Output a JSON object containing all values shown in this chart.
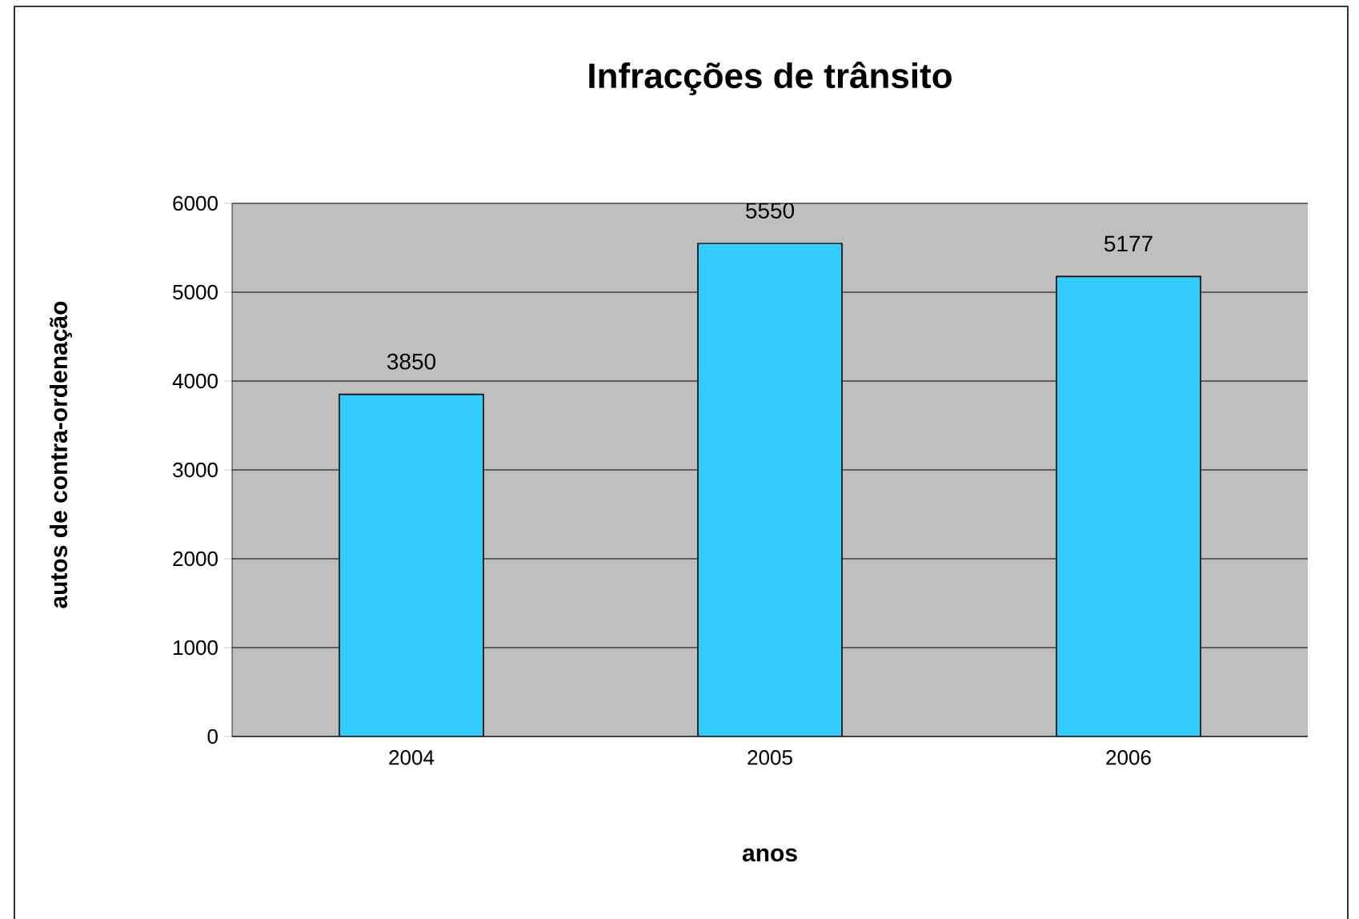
{
  "chart_data": {
    "type": "bar",
    "title": "Infracções de trânsito",
    "xlabel": "anos",
    "ylabel": "autos de contra-ordenação",
    "categories": [
      "2004",
      "2005",
      "2006"
    ],
    "values": [
      3850,
      5550,
      5177
    ],
    "color": "#33ccff",
    "ylim": [
      0,
      6000
    ],
    "yticks": [
      0,
      1000,
      2000,
      3000,
      4000,
      5000,
      6000
    ],
    "grid": "y",
    "data_labels": true
  }
}
